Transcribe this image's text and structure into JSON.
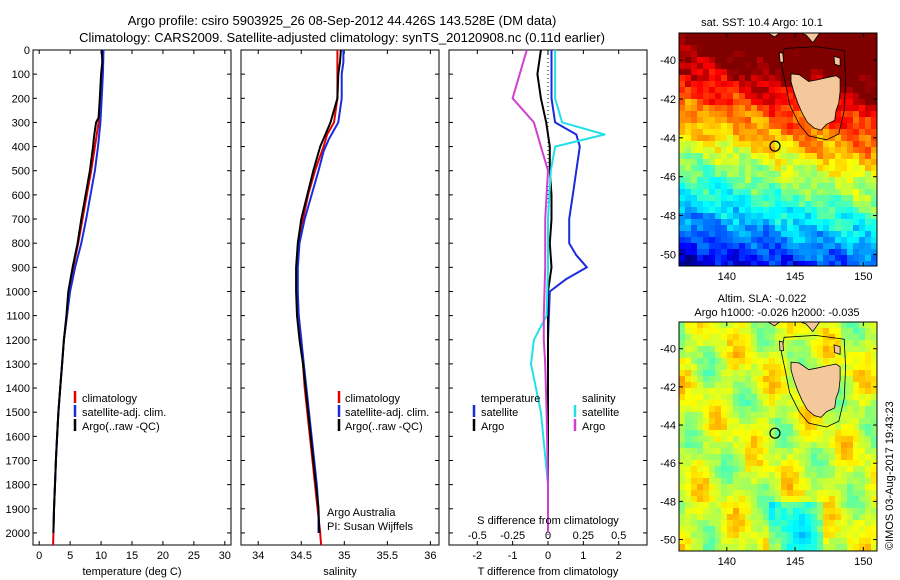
{
  "header": {
    "title_line1": "Argo profile: csiro 5903925_26 08-Sep-2012 44.426S 143.528E (DM data)",
    "title_line2": "Climatology: CARS2009. Satellite-adjusted climatology: synTS_20120908.nc (0.11d earlier)"
  },
  "depth_ticks": [
    "0",
    "100",
    "200",
    "300",
    "400",
    "500",
    "600",
    "700",
    "800",
    "900",
    "1000",
    "1100",
    "1200",
    "1300",
    "1400",
    "1500",
    "1600",
    "1700",
    "1800",
    "1900",
    "2000"
  ],
  "colors": {
    "climatology": "#e00000",
    "satellite": "#1a2bdc",
    "argo": "#000000",
    "sal_satellite": "#22e0ea",
    "sal_argo": "#d040d0",
    "land": "#f5c89c"
  },
  "chart_data": [
    {
      "type": "line",
      "panel": "temperature",
      "xlabel": "temperature (deg C)",
      "xlim": [
        -1,
        31
      ],
      "ylim": [
        2050,
        0
      ],
      "xticks": [
        "0",
        "5",
        "10",
        "15",
        "20",
        "25",
        "30"
      ],
      "legend": [
        "climatology",
        "satellite-adj. clim.",
        "Argo(..raw -QC)"
      ],
      "legend_placement": "lower-center",
      "series": [
        {
          "name": "climatology",
          "depth": [
            0,
            100,
            200,
            300,
            400,
            500,
            600,
            700,
            800,
            900,
            1000,
            1100,
            1200,
            1300,
            1400,
            1500,
            1600,
            1700,
            1800,
            1900,
            2000,
            2050
          ],
          "values": [
            10.3,
            10.2,
            10.0,
            9.6,
            9.0,
            8.4,
            7.7,
            7.0,
            6.3,
            5.5,
            4.9,
            4.5,
            4.0,
            3.7,
            3.4,
            3.1,
            2.9,
            2.7,
            2.55,
            2.4,
            2.3,
            2.25
          ]
        },
        {
          "name": "satellite-adj. clim.",
          "depth": [
            0,
            100,
            200,
            300,
            400,
            500,
            600,
            700,
            800,
            900,
            1000,
            1100,
            1200,
            1300,
            1400,
            1500,
            1600,
            1700,
            1800,
            1900,
            2000
          ],
          "values": [
            10.4,
            10.3,
            10.1,
            9.9,
            9.5,
            9.0,
            8.3,
            7.6,
            6.8,
            5.8,
            5.0,
            4.5,
            4.0,
            3.7,
            3.4,
            3.1,
            2.9,
            2.7,
            2.55,
            2.4,
            2.3
          ]
        },
        {
          "name": "Argo(..raw -QC)",
          "depth": [
            0,
            50,
            100,
            200,
            280,
            300,
            350,
            400,
            500,
            600,
            700,
            800,
            900,
            1000,
            1100,
            1200,
            1300,
            1400,
            1500,
            1600,
            1700,
            1800,
            1900,
            2000
          ],
          "values": [
            10.1,
            10.2,
            10.0,
            9.8,
            9.6,
            9.2,
            8.9,
            8.7,
            8.2,
            7.5,
            6.8,
            6.2,
            5.4,
            4.7,
            4.4,
            4.0,
            3.7,
            3.4,
            3.1,
            2.9,
            2.7,
            2.55,
            2.4,
            2.3
          ]
        }
      ]
    },
    {
      "type": "line",
      "panel": "salinity",
      "xlabel": "salinity",
      "xlim": [
        33.8,
        36.1
      ],
      "ylim": [
        2050,
        0
      ],
      "xticks": [
        "34",
        "34.5",
        "35",
        "35.5",
        "36"
      ],
      "legend": [
        "climatology",
        "satellite-adj. clim.",
        "Argo(..raw -QC)"
      ],
      "legend_placement": "lower-right",
      "annotation": [
        "Argo Australia",
        "PI: Susan Wijffels"
      ],
      "series": [
        {
          "name": "climatology",
          "depth": [
            0,
            100,
            200,
            300,
            350,
            400,
            500,
            600,
            700,
            800,
            900,
            1000,
            1100,
            1200,
            1300,
            1400,
            1500,
            1600,
            1700,
            1800,
            1900,
            2000,
            2050
          ],
          "values": [
            34.92,
            34.92,
            34.92,
            34.88,
            34.8,
            34.76,
            34.66,
            34.58,
            34.52,
            34.47,
            34.45,
            34.45,
            34.47,
            34.5,
            34.52,
            34.54,
            34.57,
            34.6,
            34.63,
            34.66,
            34.69,
            34.72,
            34.73
          ]
        },
        {
          "name": "satellite-adj. clim.",
          "depth": [
            0,
            50,
            100,
            200,
            300,
            370,
            420,
            500,
            600,
            700,
            800,
            900,
            1000,
            1100,
            1200,
            1300,
            1400,
            1500,
            1600,
            1700,
            1800,
            1900,
            2000
          ],
          "values": [
            34.99,
            34.99,
            34.97,
            34.97,
            34.93,
            34.82,
            34.76,
            34.7,
            34.62,
            34.54,
            34.48,
            34.46,
            34.46,
            34.47,
            34.5,
            34.53,
            34.56,
            34.59,
            34.62,
            34.65,
            34.68,
            34.7,
            34.7
          ]
        },
        {
          "name": "Argo(..raw -QC)",
          "depth": [
            0,
            50,
            100,
            200,
            300,
            350,
            400,
            500,
            600,
            700,
            800,
            900,
            1000,
            1100,
            1200,
            1300,
            1400,
            1500,
            1600,
            1700,
            1800,
            1900,
            2000
          ],
          "values": [
            34.96,
            34.95,
            34.93,
            34.92,
            34.84,
            34.78,
            34.72,
            34.64,
            34.57,
            34.5,
            34.46,
            34.44,
            34.44,
            34.45,
            34.48,
            34.52,
            34.55,
            34.58,
            34.61,
            34.64,
            34.67,
            34.7,
            34.71
          ]
        }
      ]
    },
    {
      "type": "line",
      "panel": "difference",
      "xlabel": "T difference from climatology",
      "xlabel_top": "S difference from climatology",
      "xlim": [
        -2.8,
        2.8
      ],
      "ylim": [
        2050,
        0
      ],
      "xticks": [
        "-2",
        "-1",
        "0",
        "1",
        "2"
      ],
      "xticks_top": [
        "-0.5",
        "-0.25",
        "0",
        "0.25",
        "0.5"
      ],
      "legend_temperature": [
        "temperature",
        "satellite",
        "Argo"
      ],
      "legend_salinity": [
        "salinity",
        "satellite",
        "Argo"
      ],
      "series": [
        {
          "name": "satellite",
          "depth": [
            0,
            100,
            200,
            300,
            350,
            400,
            500,
            600,
            700,
            800,
            850,
            900,
            950,
            1000,
            1200,
            1500,
            2000
          ],
          "values": [
            0.1,
            0.1,
            0.1,
            0.2,
            0.8,
            0.9,
            0.8,
            0.7,
            0.6,
            0.6,
            0.8,
            1.1,
            0.5,
            0.05,
            0.0,
            0.0,
            0.0
          ]
        },
        {
          "name": "Argo",
          "depth": [
            0,
            100,
            200,
            300,
            400,
            500,
            600,
            700,
            800,
            900,
            1000,
            1100,
            1200,
            1300,
            1500,
            1700,
            2000
          ],
          "values": [
            -0.2,
            -0.3,
            -0.2,
            -0.05,
            0.05,
            0.05,
            0.1,
            0.1,
            0.05,
            0.1,
            0.0,
            0.0,
            0.0,
            0.0,
            0.0,
            0.0,
            0.0
          ]
        },
        {
          "name": "salinity satellite",
          "depth": [
            0,
            100,
            200,
            300,
            350,
            400,
            500,
            700,
            900,
            1100,
            1200,
            1300,
            1500,
            1800,
            2000
          ],
          "values": [
            0.05,
            0.05,
            0.05,
            0.1,
            0.4,
            0.05,
            0.02,
            0.0,
            0.0,
            -0.01,
            -0.1,
            -0.12,
            -0.05,
            0.0,
            0.0
          ]
        },
        {
          "name": "salinity Argo",
          "depth": [
            0,
            100,
            200,
            300,
            400,
            500,
            700,
            900,
            1100,
            1200,
            1300,
            1500,
            1800,
            2000
          ],
          "values": [
            -0.15,
            -0.2,
            -0.25,
            -0.1,
            -0.05,
            0.0,
            -0.02,
            -0.02,
            -0.03,
            -0.03,
            -0.02,
            -0.01,
            0.0,
            0.0
          ]
        }
      ]
    }
  ],
  "maps": [
    {
      "title": "sat. SST: 10.4 Argo: 10.1",
      "xticks": [
        "140",
        "145",
        "150"
      ],
      "yticks": [
        "-40",
        "-42",
        "-44",
        "-46",
        "-48",
        "-50"
      ],
      "lon_range": [
        136.5,
        151
      ],
      "lat_range": [
        -50.6,
        -38.6
      ],
      "argo_position": [
        143.528,
        -44.426
      ]
    },
    {
      "title_line1": "Altim. SLA: -0.022",
      "title_line2": "Argo h1000: -0.026 h2000: -0.035",
      "xticks": [
        "140",
        "145",
        "150"
      ],
      "yticks": [
        "-40",
        "-42",
        "-44",
        "-46",
        "-48",
        "-50"
      ],
      "lon_range": [
        136.5,
        151
      ],
      "lat_range": [
        -50.6,
        -38.6
      ],
      "argo_position": [
        143.528,
        -44.426
      ]
    }
  ],
  "footer": {
    "stamp": "©IMOS 03-Aug-2017 19:43:23"
  }
}
